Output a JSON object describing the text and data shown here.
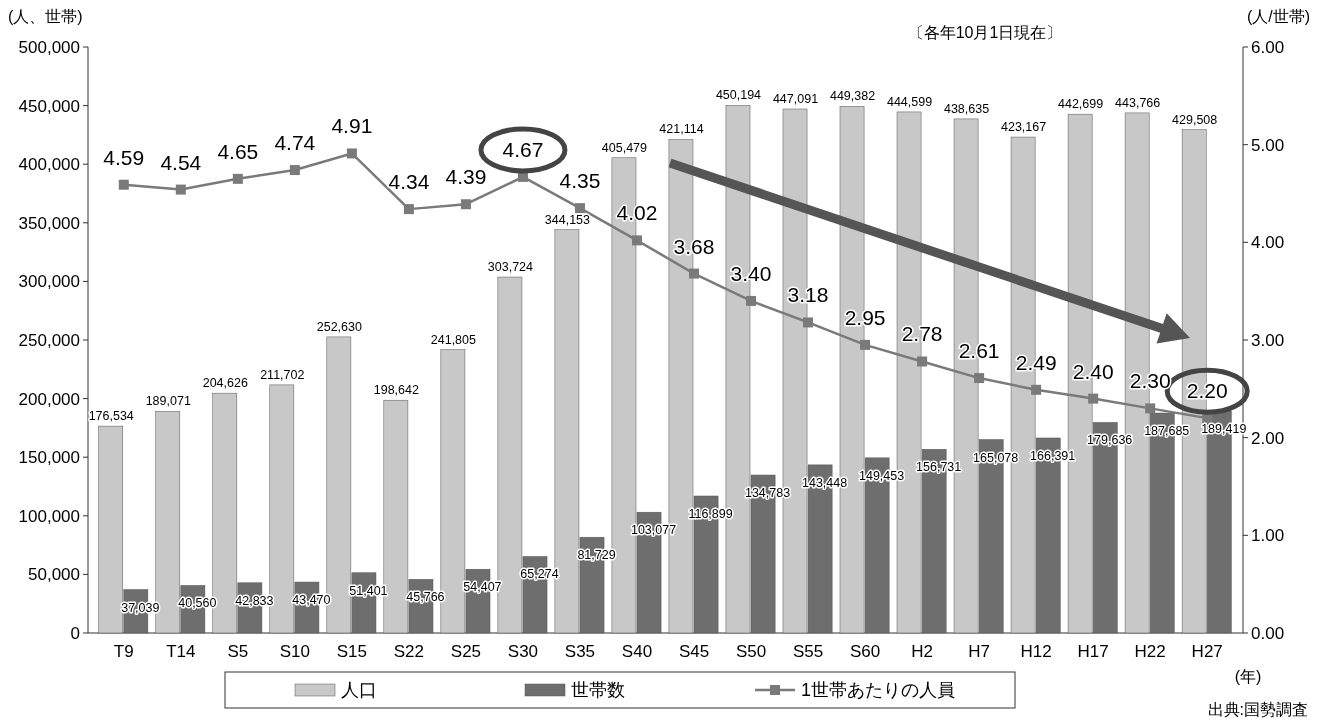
{
  "chart_data": {
    "type": "bar",
    "categories": [
      "T9",
      "T14",
      "S5",
      "S10",
      "S15",
      "S22",
      "S25",
      "S30",
      "S35",
      "S40",
      "S45",
      "S50",
      "S55",
      "S60",
      "H2",
      "H7",
      "H12",
      "H17",
      "H22",
      "H27"
    ],
    "series": [
      {
        "name": "人口",
        "color": "#c8c8c8",
        "values": [
          176534,
          189071,
          204626,
          211702,
          252630,
          198642,
          241805,
          303724,
          344153,
          405479,
          421114,
          450194,
          447091,
          449382,
          444599,
          438635,
          423167,
          442699,
          443766,
          429508
        ],
        "value_labels": [
          "176,534",
          "189,071",
          "204,626",
          "211,702",
          "252,630",
          "198,642",
          "241,805",
          "303,724",
          "344,153",
          "405,479",
          "421,114",
          "450,194",
          "447,091",
          "449,382",
          "444,599",
          "438,635",
          "423,167",
          "442,699",
          "443,766",
          "429,508"
        ]
      },
      {
        "name": "世帯数",
        "color": "#6e6e6e",
        "values": [
          37039,
          40560,
          42833,
          43470,
          51401,
          45766,
          54407,
          65274,
          81729,
          103077,
          116899,
          134783,
          143448,
          149453,
          156731,
          165078,
          166391,
          179636,
          187685,
          189419
        ],
        "value_labels": [
          "37,039",
          "40,560",
          "42,833",
          "43,470",
          "51,401",
          "45,766",
          "54,407",
          "65,274",
          "81,729",
          "103,077",
          "116,899",
          "134,783",
          "143,448",
          "149,453",
          "156,731",
          "165,078",
          "166,391",
          "179,636",
          "187,685",
          "189,419"
        ]
      },
      {
        "name": "1世帯あたりの人員",
        "type": "line",
        "axis": "y2",
        "color": "#7a7a7a",
        "values": [
          4.59,
          4.54,
          4.65,
          4.74,
          4.91,
          4.34,
          4.39,
          4.67,
          4.35,
          4.02,
          3.68,
          3.4,
          3.18,
          2.95,
          2.78,
          2.61,
          2.49,
          2.4,
          2.3,
          2.2
        ],
        "value_labels": [
          "4.59",
          "4.54",
          "4.65",
          "4.74",
          "4.91",
          "4.34",
          "4.39",
          "4.67",
          "4.35",
          "4.02",
          "3.68",
          "3.40",
          "3.18",
          "2.95",
          "2.78",
          "2.61",
          "2.49",
          "2.40",
          "2.30",
          "2.20"
        ]
      }
    ],
    "ylim": [
      0,
      500000
    ],
    "yticks": [
      {
        "value": 0,
        "label": "0"
      },
      {
        "value": 50000,
        "label": "50,000"
      },
      {
        "value": 100000,
        "label": "100,000"
      },
      {
        "value": 150000,
        "label": "150,000"
      },
      {
        "value": 200000,
        "label": "200,000"
      },
      {
        "value": 250000,
        "label": "250,000"
      },
      {
        "value": 300000,
        "label": "300,000"
      },
      {
        "value": 350000,
        "label": "350,000"
      },
      {
        "value": 400000,
        "label": "400,000"
      },
      {
        "value": 450000,
        "label": "450,000"
      },
      {
        "value": 500000,
        "label": "500,000"
      }
    ],
    "y2lim": [
      0,
      6
    ],
    "y2ticks": [
      {
        "value": 0,
        "label": "0.00"
      },
      {
        "value": 1,
        "label": "1.00"
      },
      {
        "value": 2,
        "label": "2.00"
      },
      {
        "value": 3,
        "label": "3.00"
      },
      {
        "value": 4,
        "label": "4.00"
      },
      {
        "value": 5,
        "label": "5.00"
      },
      {
        "value": 6,
        "label": "6.00"
      }
    ],
    "ylabel": "(人、世帯)",
    "y2label": "(人/世帯)",
    "xlabel": "(年)",
    "annotations": [
      "〔各年10月1日現在〕",
      "出典:国勢調査"
    ],
    "legend": "bottom",
    "marker": "square",
    "line_style": "solid"
  }
}
